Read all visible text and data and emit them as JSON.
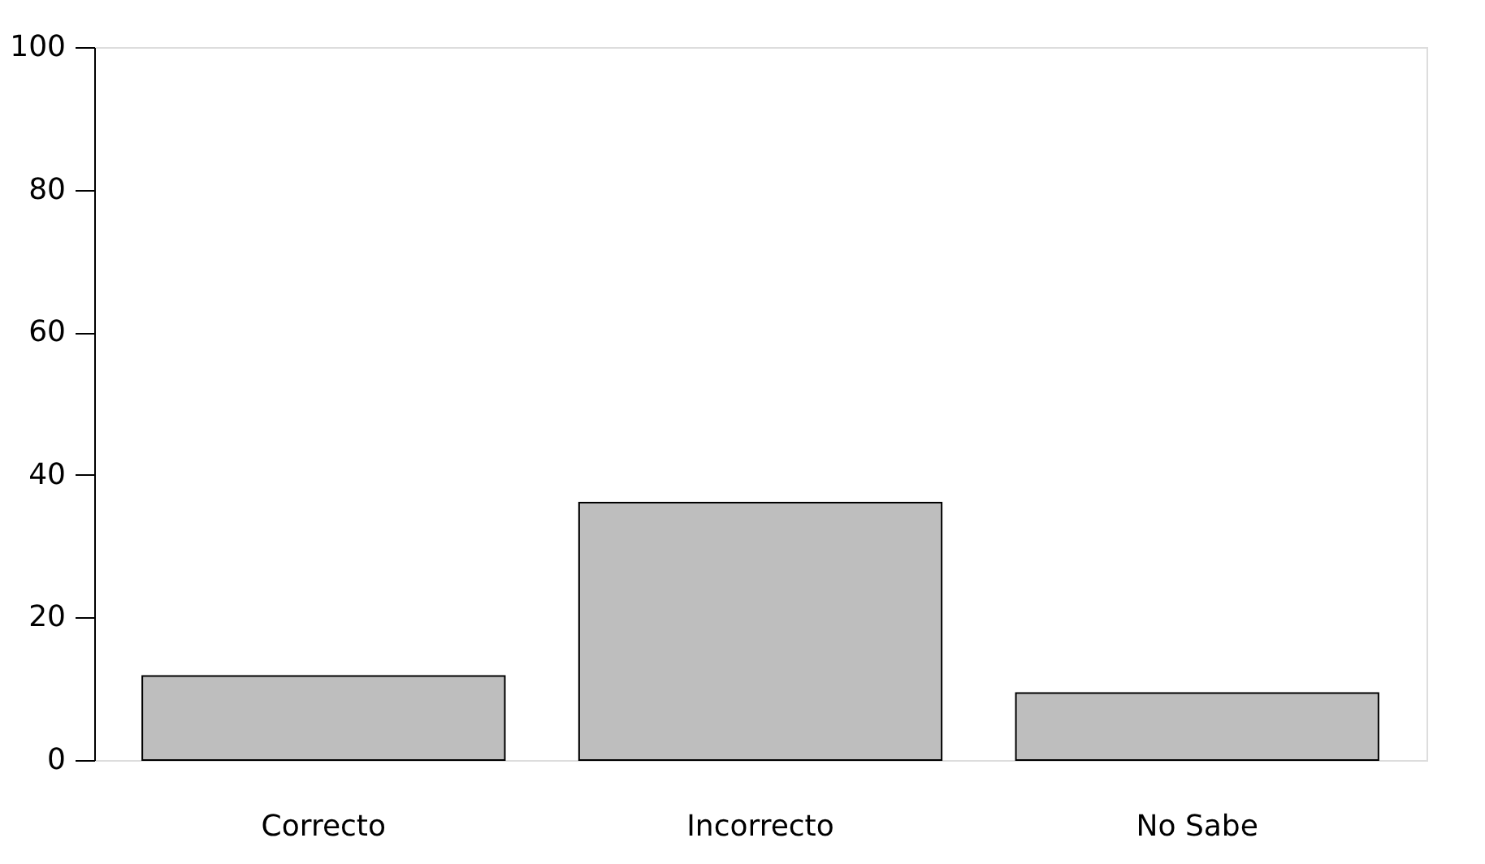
{
  "chart_data": {
    "type": "bar",
    "categories": [
      "Correcto",
      "Incorrecto",
      "No Sabe"
    ],
    "values": [
      11.8,
      36.1,
      9.4
    ],
    "color": "#bebebe",
    "ylim": [
      0,
      100
    ],
    "yticks": [
      0,
      20,
      40,
      60,
      80,
      100
    ],
    "grid": false
  }
}
